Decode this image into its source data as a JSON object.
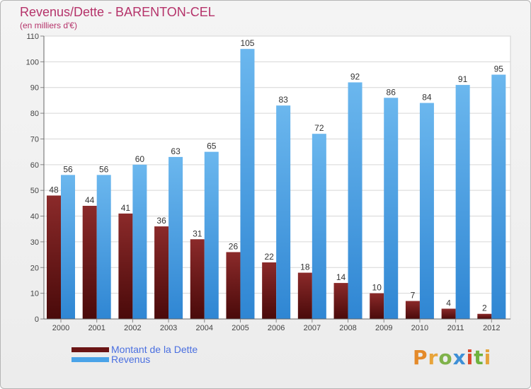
{
  "colors": {
    "debt_top": "#8b2a2a",
    "debt_bottom": "#4a0a0a",
    "revenue_top": "#6bb7ee",
    "revenue_bottom": "#2f86d3",
    "title": "#b5336a",
    "legend_text": "#4a6fe0"
  },
  "chart_data": {
    "type": "bar",
    "title": "Revenus/Dette - BARENTON-CEL",
    "subtitle": "(en milliers d'€)",
    "categories": [
      "2000",
      "2001",
      "2002",
      "2003",
      "2004",
      "2005",
      "2006",
      "2007",
      "2008",
      "2009",
      "2010",
      "2011",
      "2012"
    ],
    "series": [
      {
        "name": "Montant de la Dette",
        "values": [
          48,
          44,
          41,
          36,
          31,
          26,
          22,
          18,
          14,
          10,
          7,
          4,
          2
        ]
      },
      {
        "name": "Revenus",
        "values": [
          56,
          56,
          60,
          63,
          65,
          105,
          83,
          72,
          92,
          86,
          84,
          91,
          95
        ]
      }
    ],
    "ylim": [
      0,
      110
    ],
    "yticks": [
      0,
      10,
      20,
      30,
      40,
      50,
      60,
      70,
      80,
      90,
      100,
      110
    ],
    "grid": true,
    "xlabel": "",
    "ylabel": ""
  },
  "legend": {
    "items": [
      {
        "label": "Montant de la Dette",
        "color": "#6b1515"
      },
      {
        "label": "Revenus",
        "color": "#4aa3e8"
      }
    ]
  },
  "logo": {
    "letters": [
      "P",
      "r",
      "o",
      "x",
      "i",
      "t",
      "i"
    ]
  }
}
